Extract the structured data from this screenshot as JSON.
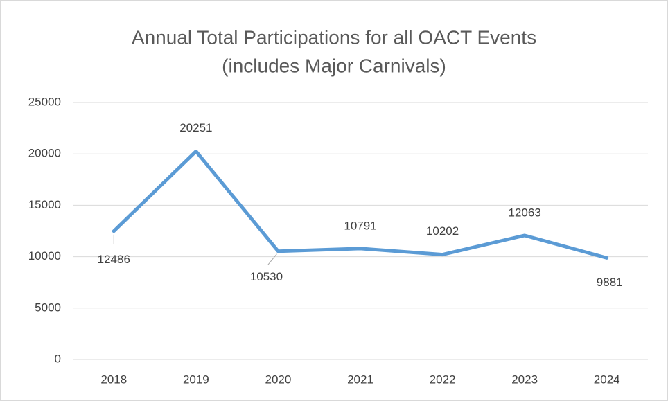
{
  "chart_data": {
    "type": "line",
    "title": [
      "Annual Total Participations for all OACT Events",
      "(includes Major Carnivals)"
    ],
    "categories": [
      "2018",
      "2019",
      "2020",
      "2021",
      "2022",
      "2023",
      "2024"
    ],
    "values": [
      12486,
      20251,
      10530,
      10791,
      10202,
      12063,
      9881
    ],
    "color": "#5b9bd5",
    "ylim": [
      0,
      25000
    ],
    "yticks": [
      0,
      5000,
      10000,
      15000,
      20000,
      25000
    ],
    "grid": true
  }
}
